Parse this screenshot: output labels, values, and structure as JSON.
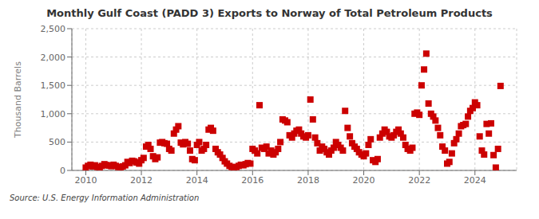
{
  "chart_data": {
    "type": "scatter",
    "title": "Monthly Gulf Coast (PADD 3) Exports to Norway of Total Petroleum Products",
    "ylabel": "Thousand Barrels",
    "source": "Source: U.S. Energy Information Administration",
    "color": "#cc0000",
    "marker": "square",
    "grid": true,
    "xlim": [
      2009.5,
      2025.5
    ],
    "xticks": [
      2010,
      2012,
      2014,
      2016,
      2018,
      2020,
      2022,
      2024
    ],
    "ylim": [
      0,
      2500
    ],
    "yticks": [
      0,
      500,
      {
        "value": 1000,
        "label": "1,000"
      },
      {
        "value": 1500,
        "label": "1,500"
      },
      {
        "value": 2000,
        "label": "2,000"
      },
      {
        "value": 2500,
        "label": "2,500"
      }
    ],
    "x": [
      2010.0,
      2010.08,
      2010.17,
      2010.25,
      2010.33,
      2010.42,
      2010.5,
      2010.58,
      2010.67,
      2010.75,
      2010.83,
      2010.92,
      2011.0,
      2011.08,
      2011.17,
      2011.25,
      2011.33,
      2011.42,
      2011.5,
      2011.58,
      2011.67,
      2011.75,
      2011.83,
      2011.92,
      2012.0,
      2012.08,
      2012.17,
      2012.25,
      2012.33,
      2012.42,
      2012.5,
      2012.58,
      2012.67,
      2012.75,
      2012.83,
      2012.92,
      2013.0,
      2013.08,
      2013.17,
      2013.25,
      2013.33,
      2013.42,
      2013.5,
      2013.58,
      2013.67,
      2013.75,
      2013.83,
      2013.92,
      2014.0,
      2014.08,
      2014.17,
      2014.25,
      2014.33,
      2014.42,
      2014.5,
      2014.58,
      2014.67,
      2014.75,
      2014.83,
      2014.92,
      2015.0,
      2015.08,
      2015.17,
      2015.25,
      2015.33,
      2015.42,
      2015.5,
      2015.58,
      2015.67,
      2015.75,
      2015.83,
      2015.92,
      2016.0,
      2016.08,
      2016.17,
      2016.25,
      2016.33,
      2016.42,
      2016.5,
      2016.58,
      2016.67,
      2016.75,
      2016.83,
      2016.92,
      2017.0,
      2017.08,
      2017.17,
      2017.25,
      2017.33,
      2017.42,
      2017.5,
      2017.58,
      2017.67,
      2017.75,
      2017.83,
      2017.92,
      2018.0,
      2018.08,
      2018.17,
      2018.25,
      2018.33,
      2018.42,
      2018.5,
      2018.58,
      2018.67,
      2018.75,
      2018.83,
      2018.92,
      2019.0,
      2019.08,
      2019.17,
      2019.25,
      2019.33,
      2019.42,
      2019.5,
      2019.58,
      2019.67,
      2019.75,
      2019.83,
      2019.92,
      2020.0,
      2020.08,
      2020.17,
      2020.25,
      2020.33,
      2020.42,
      2020.5,
      2020.58,
      2020.67,
      2020.75,
      2020.83,
      2020.92,
      2021.0,
      2021.08,
      2021.17,
      2021.25,
      2021.33,
      2021.42,
      2021.5,
      2021.58,
      2021.67,
      2021.75,
      2021.83,
      2021.92,
      2022.0,
      2022.08,
      2022.17,
      2022.25,
      2022.33,
      2022.42,
      2022.5,
      2022.58,
      2022.67,
      2022.75,
      2022.83,
      2022.92,
      2023.0,
      2023.08,
      2023.17,
      2023.25,
      2023.33,
      2023.42,
      2023.5,
      2023.58,
      2023.67,
      2023.75,
      2023.83,
      2023.92,
      2024.0,
      2024.08,
      2024.17,
      2024.25,
      2024.33,
      2024.42,
      2024.5,
      2024.58,
      2024.67,
      2024.75,
      2024.83,
      2024.92
    ],
    "values": [
      50,
      80,
      100,
      70,
      90,
      60,
      50,
      80,
      110,
      95,
      85,
      75,
      100,
      80,
      60,
      50,
      70,
      90,
      150,
      130,
      170,
      160,
      140,
      120,
      180,
      220,
      420,
      450,
      380,
      250,
      200,
      230,
      490,
      500,
      480,
      470,
      380,
      350,
      650,
      720,
      780,
      490,
      460,
      500,
      470,
      350,
      200,
      180,
      450,
      500,
      350,
      380,
      450,
      720,
      750,
      700,
      380,
      320,
      280,
      220,
      160,
      120,
      80,
      60,
      50,
      60,
      80,
      100,
      90,
      110,
      130,
      120,
      380,
      350,
      300,
      1150,
      400,
      380,
      420,
      300,
      350,
      280,
      320,
      380,
      500,
      900,
      880,
      850,
      620,
      580,
      650,
      700,
      720,
      650,
      600,
      580,
      620,
      1250,
      900,
      580,
      480,
      350,
      420,
      380,
      320,
      280,
      350,
      400,
      500,
      450,
      400,
      350,
      1050,
      750,
      600,
      480,
      420,
      380,
      320,
      280,
      250,
      300,
      450,
      550,
      180,
      150,
      200,
      580,
      650,
      720,
      680,
      600,
      580,
      620,
      680,
      720,
      650,
      580,
      450,
      380,
      350,
      400,
      1000,
      1020,
      980,
      1500,
      1780,
      2060,
      1180,
      1000,
      950,
      880,
      750,
      620,
      420,
      350,
      120,
      150,
      300,
      480,
      550,
      650,
      780,
      800,
      820,
      950,
      1050,
      1100,
      1200,
      1150,
      600,
      350,
      280,
      820,
      650,
      830,
      270,
      50,
      380,
      1490
    ]
  }
}
